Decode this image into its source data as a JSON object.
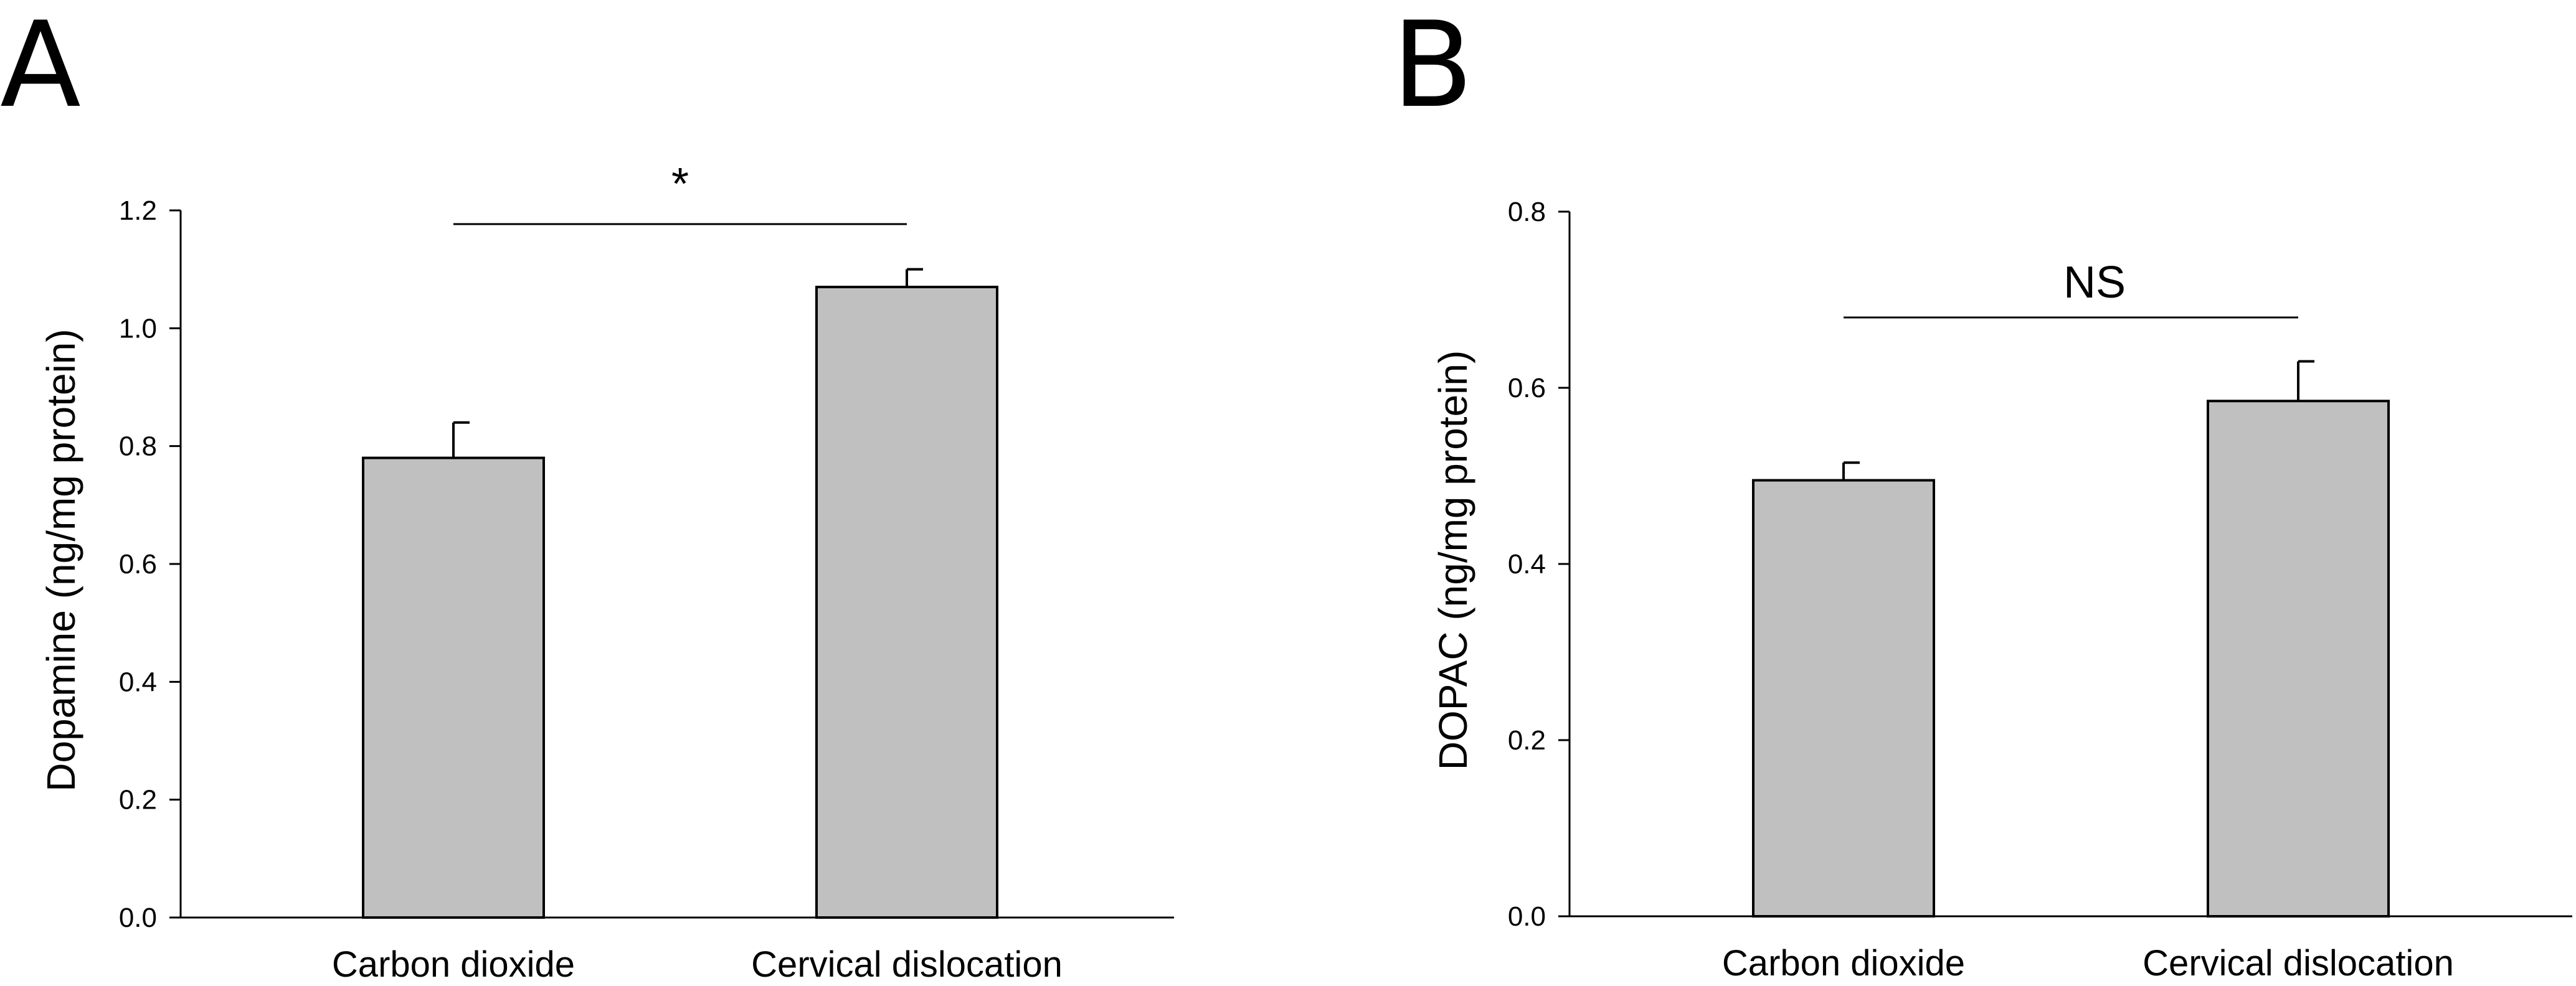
{
  "bar_color": "#c0c0c0",
  "chart_data": [
    {
      "panel": "A",
      "type": "bar",
      "categories": [
        "Carbon dioxide",
        "Cervical dislocation"
      ],
      "values": [
        0.78,
        1.07
      ],
      "errors": [
        0.06,
        0.03
      ],
      "ylabel": "Dopamine (ng/mg protein)",
      "ylim": [
        0,
        1.2
      ],
      "yticks": [
        "0.0",
        "0.2",
        "0.4",
        "0.6",
        "0.8",
        "1.0",
        "1.2"
      ],
      "significance": "*",
      "grid": false
    },
    {
      "panel": "B",
      "type": "bar",
      "categories": [
        "Carbon dioxide",
        "Cervical dislocation"
      ],
      "values": [
        0.495,
        0.585
      ],
      "errors": [
        0.02,
        0.045
      ],
      "ylabel": "DOPAC (ng/mg protein)",
      "ylim": [
        0,
        0.8
      ],
      "yticks": [
        "0.0",
        "0.2",
        "0.4",
        "0.6",
        "0.8"
      ],
      "significance": "NS",
      "grid": false
    }
  ]
}
